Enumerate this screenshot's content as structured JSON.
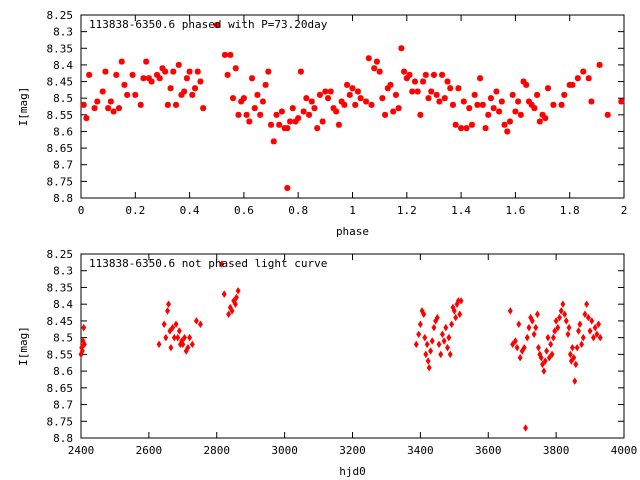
{
  "colors": {
    "points": "#ff0000",
    "frame": "#000000",
    "background": "#ffffff"
  },
  "chart_data": [
    {
      "type": "scatter",
      "title": "113838-6350.6 phased with P=73.20day",
      "xlabel": "phase",
      "ylabel": "I[mag]",
      "xlim": [
        0,
        2
      ],
      "ylim": [
        8.25,
        8.8
      ],
      "y_inverted": true,
      "grid": false,
      "legend": "none",
      "marker": "plus-star",
      "x_ticks": [
        {
          "value": 0,
          "label": "0"
        },
        {
          "value": 0.2,
          "label": "0.2"
        },
        {
          "value": 0.4,
          "label": "0.4"
        },
        {
          "value": 0.6,
          "label": "0.6"
        },
        {
          "value": 0.8,
          "label": "0.8"
        },
        {
          "value": 1,
          "label": "1"
        },
        {
          "value": 1.2,
          "label": "1.2"
        },
        {
          "value": 1.4,
          "label": "1.4"
        },
        {
          "value": 1.6,
          "label": "1.6"
        },
        {
          "value": 1.8,
          "label": "1.8"
        },
        {
          "value": 2,
          "label": "2"
        }
      ],
      "y_ticks": [
        {
          "value": 8.25,
          "label": "8.25"
        },
        {
          "value": 8.3,
          "label": "8.3"
        },
        {
          "value": 8.35,
          "label": "8.35"
        },
        {
          "value": 8.4,
          "label": "8.4"
        },
        {
          "value": 8.45,
          "label": "8.45"
        },
        {
          "value": 8.5,
          "label": "8.5"
        },
        {
          "value": 8.55,
          "label": "8.55"
        },
        {
          "value": 8.6,
          "label": "8.6"
        },
        {
          "value": 8.65,
          "label": "8.65"
        },
        {
          "value": 8.7,
          "label": "8.7"
        },
        {
          "value": 8.75,
          "label": "8.75"
        },
        {
          "value": 8.8,
          "label": "8.8"
        }
      ],
      "points": [
        [
          0.01,
          8.52
        ],
        [
          0.02,
          8.56
        ],
        [
          0.03,
          8.43
        ],
        [
          0.05,
          8.53
        ],
        [
          0.06,
          8.51
        ],
        [
          0.08,
          8.48
        ],
        [
          0.09,
          8.42
        ],
        [
          0.1,
          8.53
        ],
        [
          0.11,
          8.51
        ],
        [
          0.12,
          8.54
        ],
        [
          0.13,
          8.43
        ],
        [
          0.14,
          8.53
        ],
        [
          0.15,
          8.39
        ],
        [
          0.17,
          8.49
        ],
        [
          0.16,
          8.46
        ],
        [
          0.19,
          8.43
        ],
        [
          0.2,
          8.49
        ],
        [
          0.22,
          8.52
        ],
        [
          0.23,
          8.44
        ],
        [
          0.24,
          8.39
        ],
        [
          0.25,
          8.44
        ],
        [
          0.26,
          8.45
        ],
        [
          0.28,
          8.43
        ],
        [
          0.29,
          8.44
        ],
        [
          0.3,
          8.41
        ],
        [
          0.31,
          8.42
        ],
        [
          0.32,
          8.52
        ],
        [
          0.33,
          8.47
        ],
        [
          0.34,
          8.42
        ],
        [
          0.35,
          8.52
        ],
        [
          0.36,
          8.4
        ],
        [
          0.37,
          8.49
        ],
        [
          0.38,
          8.48
        ],
        [
          0.39,
          8.44
        ],
        [
          0.4,
          8.42
        ],
        [
          0.41,
          8.49
        ],
        [
          0.42,
          8.47
        ],
        [
          0.43,
          8.42
        ],
        [
          0.44,
          8.45
        ],
        [
          0.45,
          8.53
        ],
        [
          0.5,
          8.28
        ],
        [
          0.53,
          8.37
        ],
        [
          0.54,
          8.43
        ],
        [
          0.55,
          8.37
        ],
        [
          0.56,
          8.5
        ],
        [
          0.57,
          8.41
        ],
        [
          0.58,
          8.55
        ],
        [
          0.59,
          8.51
        ],
        [
          0.6,
          8.5
        ],
        [
          0.61,
          8.55
        ],
        [
          0.62,
          8.57
        ],
        [
          0.63,
          8.44
        ],
        [
          0.64,
          8.53
        ],
        [
          0.65,
          8.49
        ],
        [
          0.66,
          8.55
        ],
        [
          0.67,
          8.51
        ],
        [
          0.68,
          8.46
        ],
        [
          0.69,
          8.42
        ],
        [
          0.7,
          8.58
        ],
        [
          0.71,
          8.63
        ],
        [
          0.72,
          8.55
        ],
        [
          0.73,
          8.58
        ],
        [
          0.74,
          8.54
        ],
        [
          0.75,
          8.59
        ],
        [
          0.76,
          8.77
        ],
        [
          0.76,
          8.59
        ],
        [
          0.77,
          8.57
        ],
        [
          0.78,
          8.53
        ],
        [
          0.79,
          8.57
        ],
        [
          0.8,
          8.56
        ],
        [
          0.81,
          8.42
        ],
        [
          0.82,
          8.54
        ],
        [
          0.83,
          8.5
        ],
        [
          0.84,
          8.55
        ],
        [
          0.85,
          8.51
        ],
        [
          0.86,
          8.53
        ],
        [
          0.87,
          8.59
        ],
        [
          0.88,
          8.49
        ],
        [
          0.89,
          8.57
        ],
        [
          0.9,
          8.48
        ],
        [
          0.91,
          8.5
        ],
        [
          0.92,
          8.48
        ],
        [
          0.93,
          8.53
        ],
        [
          0.94,
          8.54
        ],
        [
          0.95,
          8.58
        ],
        [
          0.96,
          8.51
        ],
        [
          0.97,
          8.52
        ],
        [
          0.98,
          8.46
        ],
        [
          0.99,
          8.49
        ],
        [
          1.0,
          8.47
        ],
        [
          1.01,
          8.52
        ],
        [
          1.02,
          8.48
        ],
        [
          1.03,
          8.5
        ],
        [
          1.05,
          8.51
        ],
        [
          1.06,
          8.38
        ],
        [
          1.07,
          8.52
        ],
        [
          1.08,
          8.41
        ],
        [
          1.09,
          8.39
        ],
        [
          1.1,
          8.42
        ],
        [
          1.11,
          8.5
        ],
        [
          1.12,
          8.55
        ],
        [
          1.13,
          8.47
        ],
        [
          1.14,
          8.46
        ],
        [
          1.15,
          8.54
        ],
        [
          1.16,
          8.49
        ],
        [
          1.17,
          8.53
        ],
        [
          1.18,
          8.35
        ],
        [
          1.19,
          8.42
        ],
        [
          1.2,
          8.44
        ],
        [
          1.21,
          8.43
        ],
        [
          1.22,
          8.48
        ],
        [
          1.23,
          8.45
        ],
        [
          1.24,
          8.48
        ],
        [
          1.25,
          8.55
        ],
        [
          1.26,
          8.45
        ],
        [
          1.27,
          8.43
        ],
        [
          1.28,
          8.5
        ],
        [
          1.29,
          8.48
        ],
        [
          1.3,
          8.43
        ],
        [
          1.31,
          8.49
        ],
        [
          1.32,
          8.51
        ],
        [
          1.33,
          8.43
        ],
        [
          1.34,
          8.5
        ],
        [
          1.35,
          8.45
        ],
        [
          1.36,
          8.47
        ],
        [
          1.37,
          8.52
        ],
        [
          1.38,
          8.58
        ],
        [
          1.39,
          8.47
        ],
        [
          1.4,
          8.59
        ],
        [
          1.41,
          8.51
        ],
        [
          1.42,
          8.59
        ],
        [
          1.43,
          8.53
        ],
        [
          1.44,
          8.58
        ],
        [
          1.45,
          8.49
        ],
        [
          1.46,
          8.52
        ],
        [
          1.47,
          8.44
        ],
        [
          1.48,
          8.52
        ],
        [
          1.49,
          8.59
        ],
        [
          1.5,
          8.55
        ],
        [
          1.51,
          8.5
        ],
        [
          1.52,
          8.53
        ],
        [
          1.53,
          8.48
        ],
        [
          1.54,
          8.54
        ],
        [
          1.55,
          8.51
        ],
        [
          1.56,
          8.58
        ],
        [
          1.57,
          8.6
        ],
        [
          1.58,
          8.57
        ],
        [
          1.59,
          8.49
        ],
        [
          1.6,
          8.54
        ],
        [
          1.61,
          8.51
        ],
        [
          1.62,
          8.55
        ],
        [
          1.63,
          8.45
        ],
        [
          1.64,
          8.46
        ],
        [
          1.65,
          8.51
        ],
        [
          1.66,
          8.52
        ],
        [
          1.67,
          8.53
        ],
        [
          1.68,
          8.49
        ],
        [
          1.69,
          8.57
        ],
        [
          1.7,
          8.55
        ],
        [
          1.71,
          8.56
        ],
        [
          1.72,
          8.47
        ],
        [
          1.74,
          8.52
        ],
        [
          1.77,
          8.52
        ],
        [
          1.78,
          8.49
        ],
        [
          1.8,
          8.46
        ],
        [
          1.81,
          8.46
        ],
        [
          1.83,
          8.44
        ],
        [
          1.85,
          8.42
        ],
        [
          1.87,
          8.44
        ],
        [
          1.88,
          8.51
        ],
        [
          1.91,
          8.4
        ],
        [
          1.94,
          8.55
        ],
        [
          1.99,
          8.51
        ]
      ]
    },
    {
      "type": "scatter",
      "title": "113838-6350.6 not phased light curve",
      "xlabel": "hjd0",
      "ylabel": "I[mag]",
      "xlim": [
        2400,
        4000
      ],
      "ylim": [
        8.25,
        8.8
      ],
      "y_inverted": true,
      "grid": false,
      "legend": "none",
      "marker": "diamond",
      "x_ticks": [
        {
          "value": 2400,
          "label": "2400"
        },
        {
          "value": 2600,
          "label": "2600"
        },
        {
          "value": 2800,
          "label": "2800"
        },
        {
          "value": 3000,
          "label": "3000"
        },
        {
          "value": 3200,
          "label": "3200"
        },
        {
          "value": 3400,
          "label": "3400"
        },
        {
          "value": 3600,
          "label": "3600"
        },
        {
          "value": 3800,
          "label": "3800"
        },
        {
          "value": 4000,
          "label": "4000"
        }
      ],
      "y_ticks": [
        {
          "value": 8.25,
          "label": "8.25"
        },
        {
          "value": 8.3,
          "label": "8.3"
        },
        {
          "value": 8.35,
          "label": "8.35"
        },
        {
          "value": 8.4,
          "label": "8.4"
        },
        {
          "value": 8.45,
          "label": "8.45"
        },
        {
          "value": 8.5,
          "label": "8.5"
        },
        {
          "value": 8.55,
          "label": "8.55"
        },
        {
          "value": 8.6,
          "label": "8.6"
        },
        {
          "value": 8.65,
          "label": "8.65"
        },
        {
          "value": 8.7,
          "label": "8.7"
        },
        {
          "value": 8.75,
          "label": "8.75"
        },
        {
          "value": 8.8,
          "label": "8.8"
        }
      ],
      "points": [
        [
          2400,
          8.55
        ],
        [
          2402,
          8.53
        ],
        [
          2404,
          8.54
        ],
        [
          2406,
          8.51
        ],
        [
          2408,
          8.47
        ],
        [
          2410,
          8.52
        ],
        [
          2630,
          8.52
        ],
        [
          2645,
          8.46
        ],
        [
          2650,
          8.5
        ],
        [
          2655,
          8.42
        ],
        [
          2658,
          8.4
        ],
        [
          2662,
          8.48
        ],
        [
          2665,
          8.53
        ],
        [
          2670,
          8.47
        ],
        [
          2675,
          8.5
        ],
        [
          2680,
          8.46
        ],
        [
          2685,
          8.5
        ],
        [
          2690,
          8.48
        ],
        [
          2693,
          8.52
        ],
        [
          2697,
          8.51
        ],
        [
          2700,
          8.52
        ],
        [
          2705,
          8.5
        ],
        [
          2710,
          8.54
        ],
        [
          2715,
          8.53
        ],
        [
          2720,
          8.5
        ],
        [
          2728,
          8.52
        ],
        [
          2740,
          8.45
        ],
        [
          2752,
          8.46
        ],
        [
          2815,
          8.28
        ],
        [
          2822,
          8.37
        ],
        [
          2835,
          8.43
        ],
        [
          2840,
          8.41
        ],
        [
          2845,
          8.42
        ],
        [
          2850,
          8.39
        ],
        [
          2855,
          8.4
        ],
        [
          2858,
          8.38
        ],
        [
          2863,
          8.36
        ],
        [
          3388,
          8.52
        ],
        [
          3395,
          8.49
        ],
        [
          3400,
          8.46
        ],
        [
          3405,
          8.42
        ],
        [
          3410,
          8.43
        ],
        [
          3413,
          8.5
        ],
        [
          3416,
          8.55
        ],
        [
          3420,
          8.52
        ],
        [
          3423,
          8.57
        ],
        [
          3426,
          8.59
        ],
        [
          3430,
          8.54
        ],
        [
          3435,
          8.51
        ],
        [
          3440,
          8.47
        ],
        [
          3445,
          8.45
        ],
        [
          3450,
          8.44
        ],
        [
          3455,
          8.52
        ],
        [
          3460,
          8.55
        ],
        [
          3465,
          8.49
        ],
        [
          3470,
          8.51
        ],
        [
          3475,
          8.47
        ],
        [
          3480,
          8.53
        ],
        [
          3484,
          8.5
        ],
        [
          3488,
          8.55
        ],
        [
          3492,
          8.46
        ],
        [
          3496,
          8.41
        ],
        [
          3500,
          8.42
        ],
        [
          3504,
          8.44
        ],
        [
          3508,
          8.4
        ],
        [
          3512,
          8.39
        ],
        [
          3516,
          8.43
        ],
        [
          3520,
          8.39
        ],
        [
          3665,
          8.42
        ],
        [
          3672,
          8.52
        ],
        [
          3680,
          8.51
        ],
        [
          3685,
          8.53
        ],
        [
          3690,
          8.46
        ],
        [
          3694,
          8.56
        ],
        [
          3700,
          8.54
        ],
        [
          3706,
          8.53
        ],
        [
          3710,
          8.77
        ],
        [
          3715,
          8.5
        ],
        [
          3720,
          8.47
        ],
        [
          3725,
          8.44
        ],
        [
          3730,
          8.45
        ],
        [
          3735,
          8.49
        ],
        [
          3740,
          8.47
        ],
        [
          3745,
          8.43
        ],
        [
          3748,
          8.53
        ],
        [
          3752,
          8.55
        ],
        [
          3756,
          8.56
        ],
        [
          3760,
          8.58
        ],
        [
          3764,
          8.6
        ],
        [
          3768,
          8.57
        ],
        [
          3772,
          8.54
        ],
        [
          3776,
          8.5
        ],
        [
          3780,
          8.56
        ],
        [
          3784,
          8.52
        ],
        [
          3788,
          8.55
        ],
        [
          3792,
          8.5
        ],
        [
          3796,
          8.48
        ],
        [
          3800,
          8.45
        ],
        [
          3805,
          8.47
        ],
        [
          3810,
          8.44
        ],
        [
          3815,
          8.42
        ],
        [
          3820,
          8.4
        ],
        [
          3825,
          8.43
        ],
        [
          3830,
          8.45
        ],
        [
          3835,
          8.49
        ],
        [
          3838,
          8.47
        ],
        [
          3842,
          8.55
        ],
        [
          3845,
          8.57
        ],
        [
          3848,
          8.53
        ],
        [
          3852,
          8.56
        ],
        [
          3855,
          8.63
        ],
        [
          3858,
          8.58
        ],
        [
          3862,
          8.53
        ],
        [
          3866,
          8.48
        ],
        [
          3870,
          8.46
        ],
        [
          3875,
          8.52
        ],
        [
          3880,
          8.5
        ],
        [
          3885,
          8.43
        ],
        [
          3890,
          8.4
        ],
        [
          3895,
          8.44
        ],
        [
          3900,
          8.48
        ],
        [
          3905,
          8.45
        ],
        [
          3910,
          8.5
        ],
        [
          3915,
          8.47
        ],
        [
          3920,
          8.49
        ],
        [
          3925,
          8.46
        ],
        [
          3930,
          8.5
        ]
      ]
    }
  ]
}
